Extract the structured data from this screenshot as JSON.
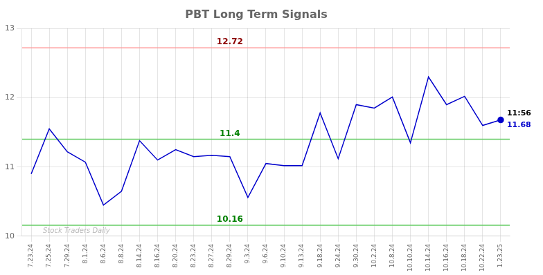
{
  "chart_data": {
    "type": "line",
    "title": "PBT Long Term Signals",
    "categories": [
      "7.23.24",
      "7.25.24",
      "7.29.24",
      "8.1.24",
      "8.6.24",
      "8.8.24",
      "8.14.24",
      "8.16.24",
      "8.20.24",
      "8.23.24",
      "8.27.24",
      "8.29.24",
      "9.3.24",
      "9.6.24",
      "9.10.24",
      "9.13.24",
      "9.18.24",
      "9.24.24",
      "9.30.24",
      "10.2.24",
      "10.8.24",
      "10.10.24",
      "10.14.24",
      "10.16.24",
      "10.18.24",
      "10.22.24",
      "1.23.25"
    ],
    "values": [
      10.9,
      11.55,
      11.22,
      11.07,
      10.45,
      10.65,
      11.38,
      11.1,
      11.25,
      11.15,
      11.17,
      11.15,
      10.56,
      11.05,
      11.02,
      11.02,
      11.78,
      11.12,
      11.9,
      11.85,
      12.01,
      11.35,
      12.3,
      11.9,
      12.02,
      11.6,
      11.68
    ],
    "color": "#0000cc",
    "hlines": [
      {
        "value": 12.72,
        "color": "#ff9999",
        "label_color": "darkred"
      },
      {
        "value": 11.4,
        "color": "#66cc66",
        "label_color": "green"
      },
      {
        "value": 10.16,
        "color": "#66cc66",
        "label_color": "green"
      }
    ],
    "annotations": [
      {
        "text": "11:56",
        "color": "black"
      },
      {
        "text": "11.68",
        "color": "#0000cc"
      }
    ],
    "watermark": "Stock Traders Daily",
    "ylim": [
      10,
      13
    ],
    "yticks": [
      10,
      11,
      12,
      13
    ],
    "grid": true
  }
}
